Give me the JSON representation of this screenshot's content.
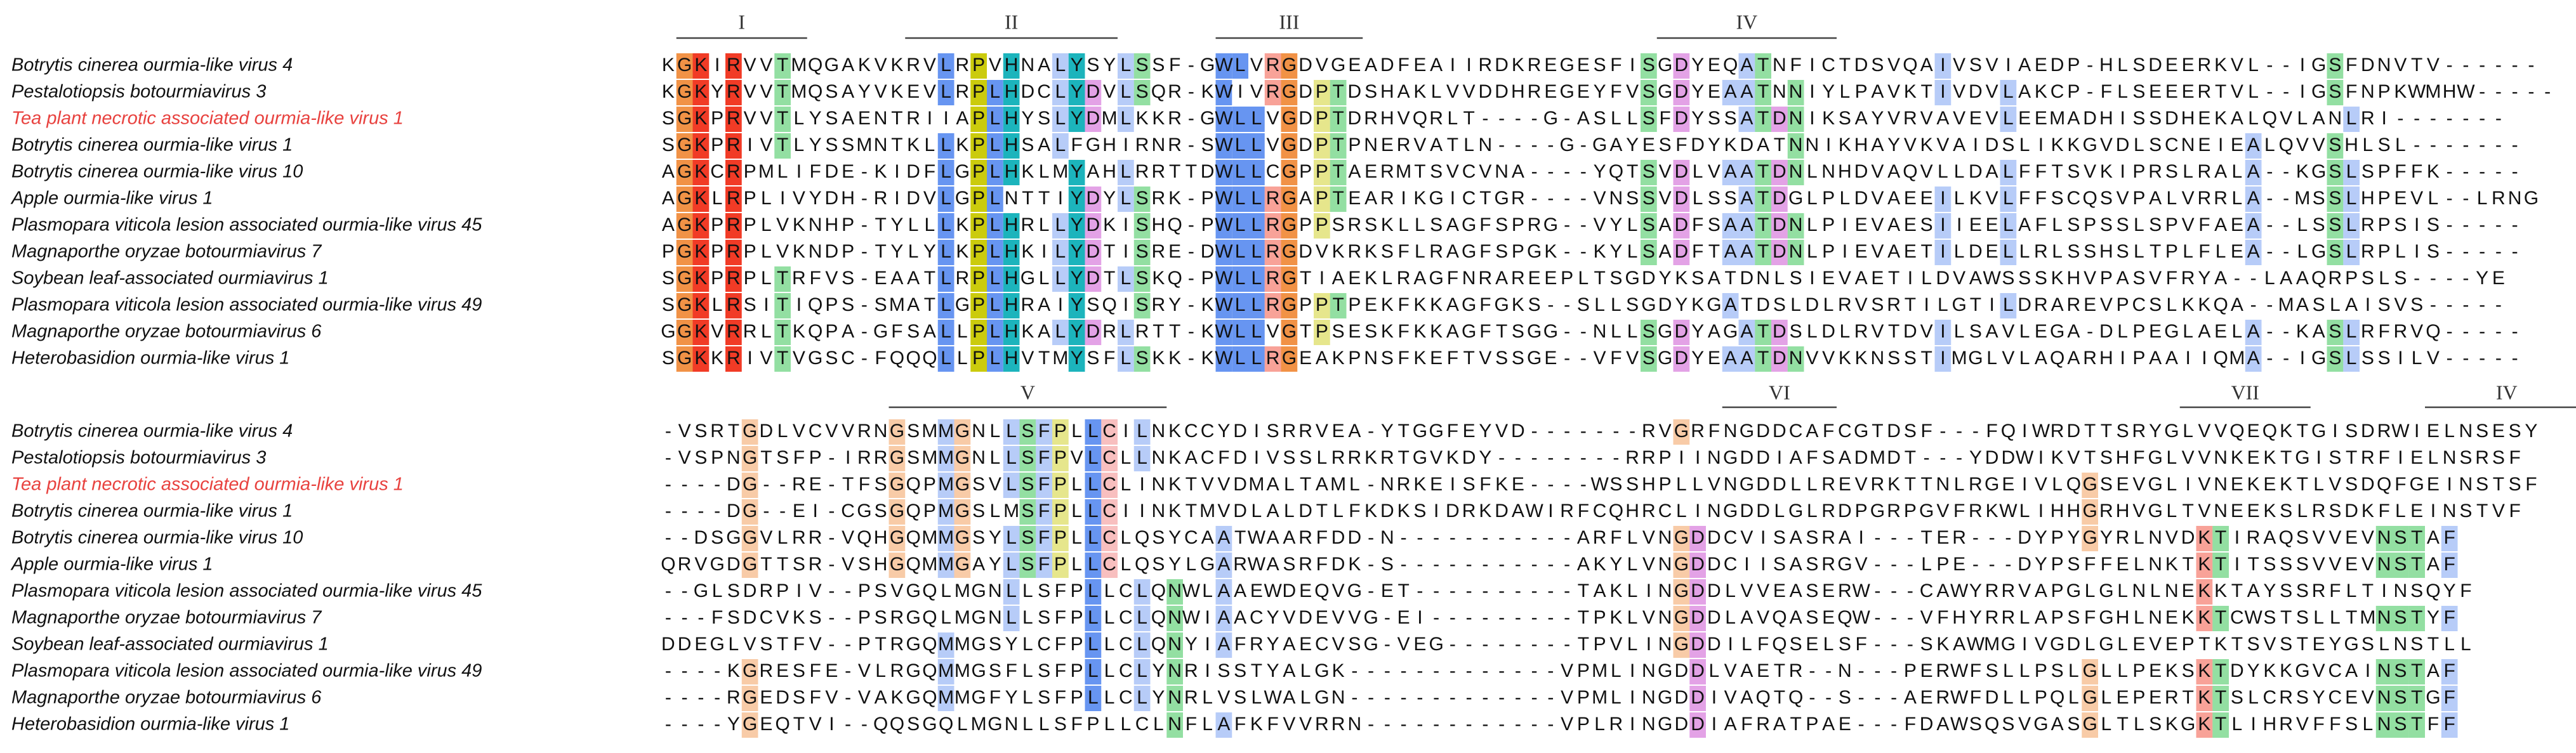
{
  "blocks": [
    {
      "motifs": [
        "I",
        "II",
        "III",
        "IV"
      ],
      "rows": [
        {
          "name": "Botrytis cinerea ourmia-like virus 4",
          "sequence": "KGKIRVVTMQGAKVKRVLRPVHNALYSYLSSF-GWLVRGDVGEADFEAIIRDKREGESFISGDYEQATNFICTDSVQAIVSVIAEDP-HLSDEERKVL--IGSFDNVTV------"
        },
        {
          "name": "Pestalotiopsis botourmiavirus 3",
          "sequence": "KGKYRVVTMQSAYVKEVLRPLHDCLYDVLSQR-KWIVRGDPTDSHAKLVVDDHREGEYFVSGDYEAATNNIYLPAVKTIVDVLAKCP-FLSEEERTVL--IGSFNPKWMHW-----"
        },
        {
          "name": "Tea plant necrotic associated ourmia-like virus 1",
          "color": "#e8423f",
          "sequence": "SGKPRVVTLYSAENTRIIAPLHYSLYDMLKKR-GWLLVGDPTDRHVQRLT----G-ASLLSFDYSSATDNIKSAYVRVAVEVLEEMADHISSDHEKALQVLANLRI-------"
        },
        {
          "name": "Botrytis cinerea ourmia-like virus 1",
          "sequence": "SGKPRIVTLYSSMNTKLLKPLHSALFGHIRNR-SWLLVGDPTPNERVATLN----G-GAYESFDYKDATNNIKHAYVKVAIDSLIKKGVDLSCNEIEALQVVSHLSL-------"
        },
        {
          "name": "Botrytis cinerea ourmia-like virus 10",
          "sequence": "AGKCRPMLIFDE-KIDFLGPLHKLMYAHLRRTTDWLLCGPPTAERMTSVCVNA----YQTSVDLVAATDNLNHDVAQVLLDALFFTSVKIPRSLRALA--KGSLSPFFK-----"
        },
        {
          "name": "Apple ourmia-like virus 1",
          "sequence": "AGKLRPLIVYDH-RIDVLGPLNTTIYDYLSRK-PWLLRGAPTEARIKGICTGR----VNSSVDLSSATDGLPLDVAEEILKVLFFSCQSVPALVRRLA--MSSLHPEVL--LRNG"
        },
        {
          "name": "Plasmopara viticola lesion associated ourmia-like virus 45",
          "sequence": "AGKPRPLVKNHP-TYLLLKPLHRLLYDKISHQ-PWLLRGPPSRSKLLSAGFSPRG--VYLSADFSAATDNLPIEVAESIIEELAFLSPSSLSPVFAEA--LSSLRPSIS-----"
        },
        {
          "name": "Magnaporthe oryzae botourmiavirus 7",
          "sequence": "PGKPRPLVKNDP-TYLYLKPLHKILYDTISRE-DWLLRGDVKRKSFLRAGFSPGK--KYLSADFTAATDNLPIEVAETILDELLRLSSHSLTPLFLEA--LGSLRPLIS-----"
        },
        {
          "name": "Soybean leaf-associated ourmiavirus 1",
          "sequence": "SGKPRPLTRFVS-EAATLRPLHGLLYDTLSKQ-PWLLRGTIAEKLRAGFNRAREEPLTSGDYKSATDNLSIEVAETILDVAWSSSKHVPASVFRYA--LAAQRPSLS----YE"
        },
        {
          "name": "Plasmopara viticola lesion associated ourmia-like virus 49",
          "sequence": "SGKLRSITIQPS-SMATLGPLHRAIYSQISRY-KWLLRGPPTPEKFKKAGFGKS--SLLSGDYKGATDSLDLRVSRTILGTILDRAREVPCSLKKQA--MASLAISVS-----"
        },
        {
          "name": "Magnaporthe oryzae botourmiavirus 6",
          "sequence": "GGKVRRLTKQPA-GFSALLPLHKALYDRLRTT-KWLLVGTPSESKFKKAGFTSGG--NLLSGDYAGATDSLDLRVTDVILSAVLEGA-DLPEGLAELA--KASLRFRVQ-----"
        },
        {
          "name": "Heterobasidion ourmia-like virus 1",
          "sequence": "SGKKRIVTVGSC-FQQQLLPLHVTMYSFLSKK-KWLLRGEAKPNSFKEFTVSSGE--VFVSGDYEAATDNVVKKNSSTIMGLVLAQARHIPAAIIQMA--IGSLSSILV-----"
        }
      ]
    },
    {
      "motifs": [
        "V",
        "VI",
        "VII",
        "IV"
      ],
      "rows": [
        {
          "name": "Botrytis cinerea ourmia-like virus 4",
          "sequence": "-VSRTGDLVCVVRNGSMMGNLLSFPLLCILNKCCYDISRRVEA-YTGGFEYVD-------RVGRFNGDDCAFCGTDSF---FQIWRDTTSRYGLVVQEQKTGISDRWIELNSESY"
        },
        {
          "name": "Pestalotiopsis botourmiavirus 3",
          "sequence": "-VSPNGTSFP-IRRGSMMGNLLSFPVLCLLNKACFDIVSSLRRKRTGVKDY--------RRPIINGDDIAFSADMDT---YDDWIKVTSHFGLVVNKEKTGISTRFIELNSRSF"
        },
        {
          "name": "Tea plant necrotic associated ourmia-like virus 1",
          "color": "#e8423f",
          "sequence": "----DG--RE-TFSGQPMGSVLSFPLLCLINKTVVDMALTAML-NRKEISFKE----WSSHPLLVNGDDLLREVRKTTNLRGEIVLQGSEVGLIVNEKEKTLVSDQFGEINSTSF"
        },
        {
          "name": "Botrytis cinerea ourmia-like virus 1",
          "sequence": "----DG--EI-CGSGQPMGSLMSFPLLCIINKTMVDLALDTLFKDKSIDRKDAWIRFCQHRCLINGDDLGLRDPGRPGVFRKWLIHHGRHVGLTVNEEKSLRSDKFLEINSTVF"
        },
        {
          "name": "Botrytis cinerea ourmia-like virus 10",
          "sequence": "--DSGGVLRR-VQHGQMMGSYLSFPLLCLQSYCAATWAARFDD-N-----------ARFLVNGDDCVISASRAI---TER---DYPYGYRLNVDKTIRAQSVVEVNSTAF"
        },
        {
          "name": "Apple ourmia-like virus 1",
          "sequence": "QRVGDGTTSR-VSHGQMMGAYLSFPLLCLQSYLGARWASRFDK-S-----------AKYLVNGDDCIISASRGV---LPE---DYPSFFELNKTKTITSSSVVEVNSTAF"
        },
        {
          "name": "Plasmopara viticola lesion associated ourmia-like virus 45",
          "sequence": "--GLSDRPIV--PSVGQLMGNLLSFPLLCLQNWLAAEWDEQVG-ET----------TAKLINGDDLVVEASERW---CAWYRRVAPGLGLNLNEKKTAYSSRFLTINSQYF"
        },
        {
          "name": "Magnaporthe oryzae botourmiavirus 7",
          "sequence": "---FSDCVKS--PSRGQLMGNLLSFPLLCLQNWIAACYVDEVVG-EI---------TPKLVNGDDLAVQASEQW---VFHYRRLAPSFGHLNEKKTCWSTSLLTMNSTYF"
        },
        {
          "name": "Soybean leaf-associated ourmiavirus 1",
          "sequence": "DDEGLVSTFV--PTRGQMMGSYLCFPLLCLQNYIAFRYAECVSG-VEG--------TPVLINGDDILFQSELSF---SKAWMGIVGDLGLEVEPTKTSVSTEYGSLNSTLL"
        },
        {
          "name": "Plasmopara viticola lesion associated ourmia-like virus 49",
          "sequence": "----KGRESFE-VLRGQMMGSFLSFPLLCLYNRISSTYALGK-------------VPMLINGDDLVAETR--N---PERWFSLLPSLGLLPEKSKTDYKKGVCAINSTAF"
        },
        {
          "name": "Magnaporthe oryzae botourmiavirus 6",
          "sequence": "----RGEDSFV-VAKGQMMGFYLSFPLLCLYNRLVSLWALGN-------------VPMLINGDDIVAQTQ--S---AERWFDLLPQLGLEPERTKTSLCRSYCEVNSTGF"
        },
        {
          "name": "Heterobasidion ourmia-like virus 1",
          "sequence": "----YGEQTVI--QQSGQLMGNLLSFPLLCLNFLAFKFVVRRN------------VPLRINGDDIAFRATPAE---FDAWSQSVGASGLTLSKGKTLIHRVFFSLNSTFF"
        }
      ]
    }
  ]
}
